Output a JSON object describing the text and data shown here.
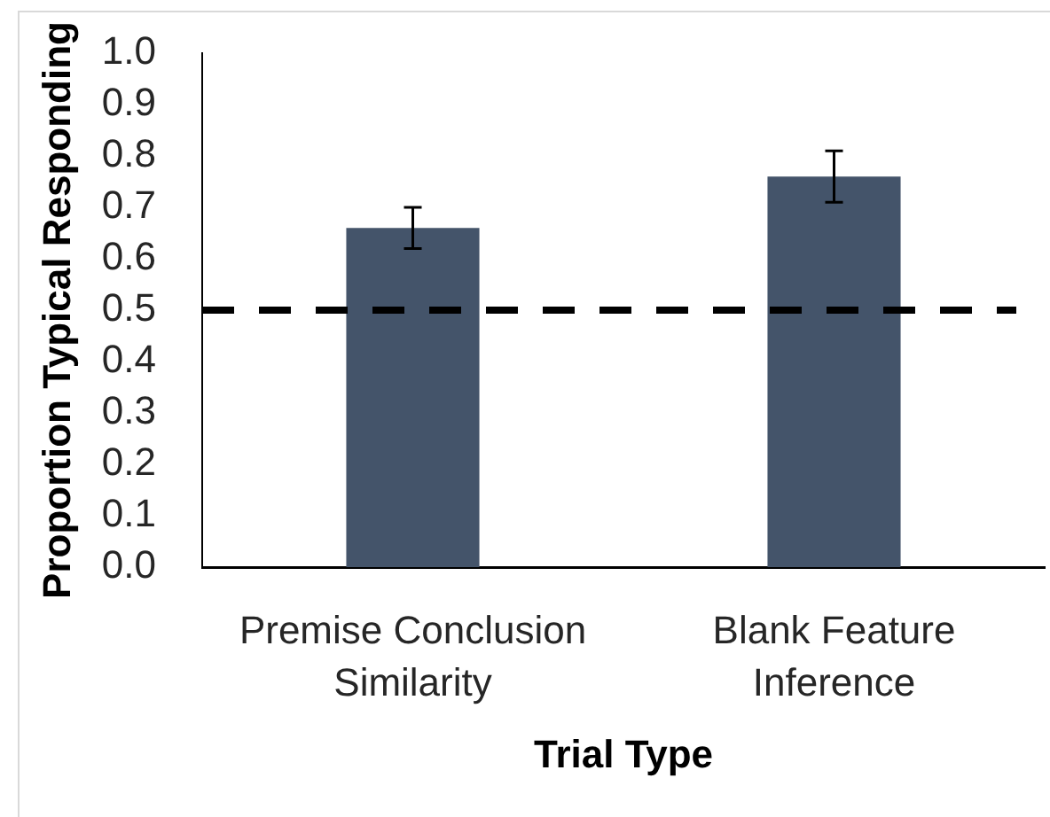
{
  "chart_data": {
    "type": "bar",
    "xlabel": "Trial Type",
    "ylabel": "Proportion Typical Responding",
    "categories": [
      "Premise Conclusion Similarity",
      "Blank Feature Inference"
    ],
    "values": [
      0.66,
      0.76
    ],
    "errors": [
      0.04,
      0.05
    ],
    "color": "#44546a",
    "ylim": [
      0,
      1.0
    ],
    "yticks": [
      {
        "value": 0,
        "label": "0.0"
      },
      0.1,
      0.2,
      0.3,
      0.4,
      0.5,
      0.6,
      0.7,
      0.8,
      0.9,
      {
        "value": 1.0,
        "label": "1.0"
      }
    ],
    "ref_lines": [
      {
        "axis": "y",
        "value": 0.5,
        "color": "#000000",
        "line_style": "dashed"
      }
    ]
  }
}
